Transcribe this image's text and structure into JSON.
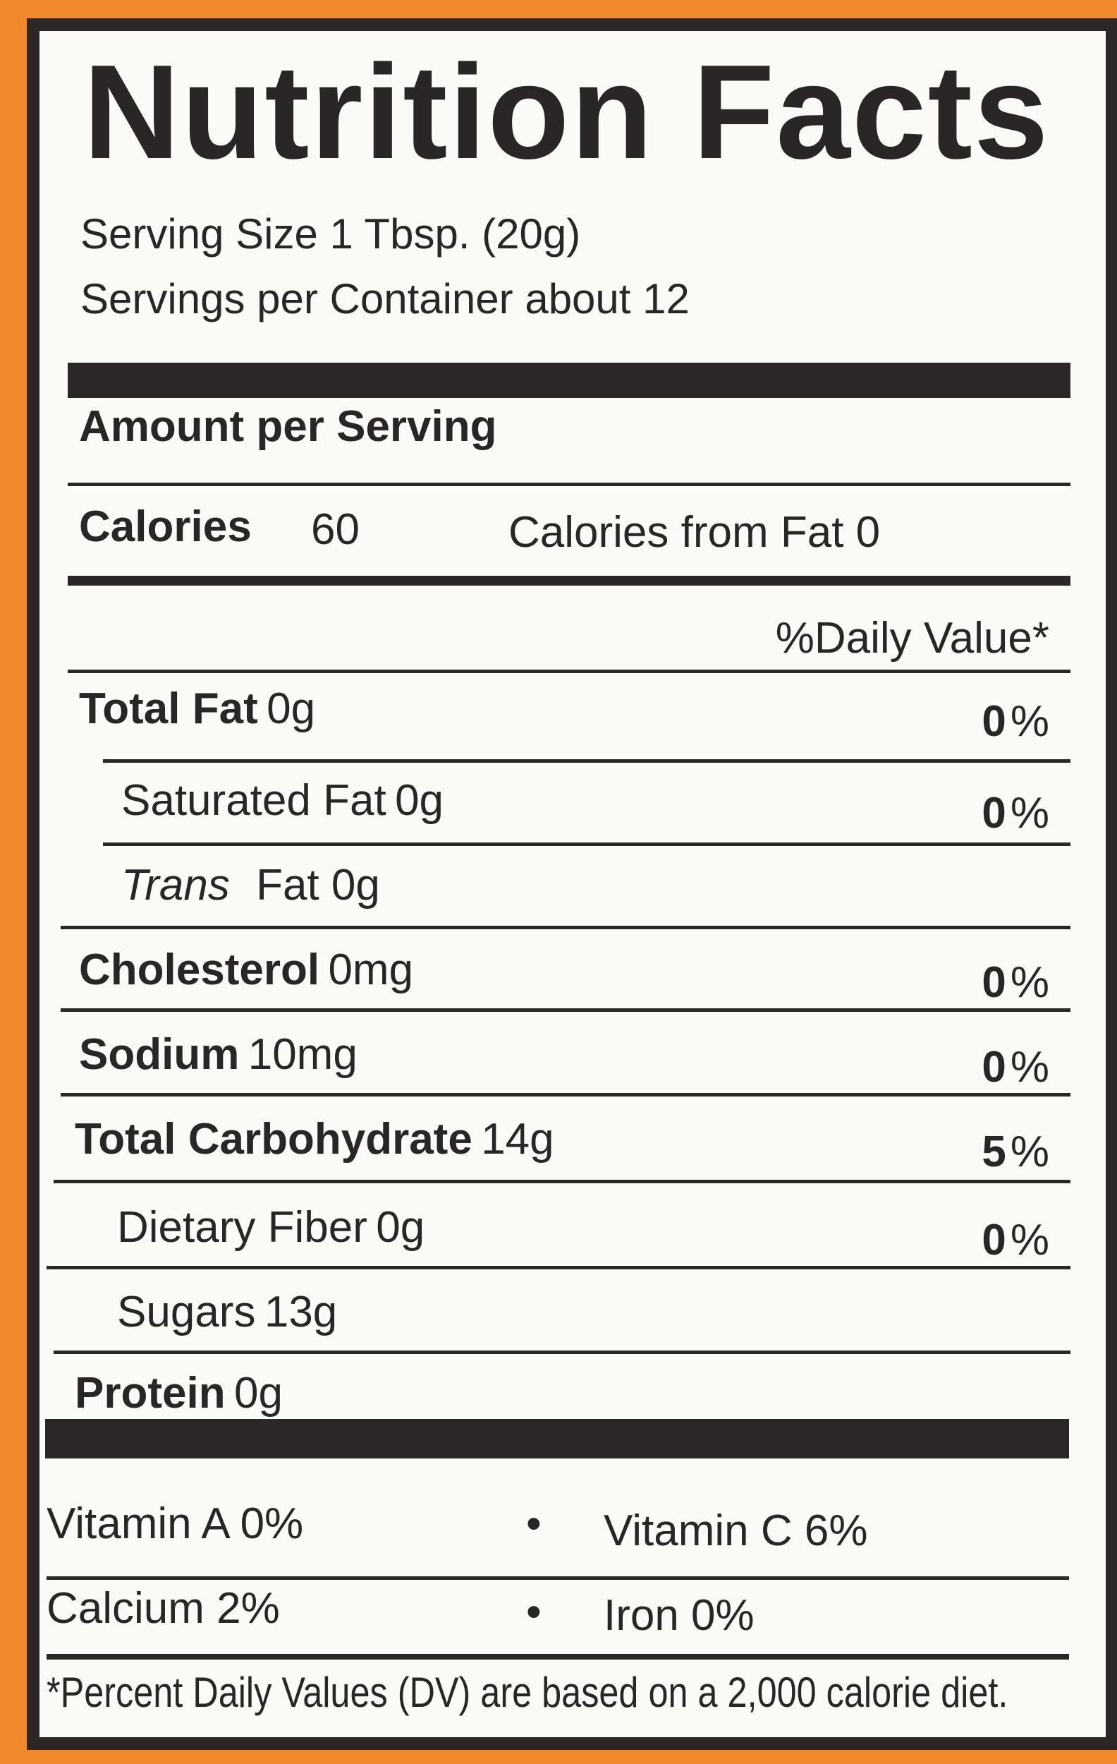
{
  "title": "Nutrition Facts",
  "serving_size": "Serving Size 1 Tbsp.  (20g)",
  "servings_per_container": "Servings per Container about 12",
  "amount_per_serving": "Amount per Serving",
  "calories": {
    "label": "Calories",
    "value": "60",
    "from_fat": "Calories from Fat 0"
  },
  "daily_value_header": "%Daily Value*",
  "nutrients": [
    {
      "label": "Total Fat",
      "amount": "0g",
      "dv": "0",
      "bold": true
    },
    {
      "label": "Saturated Fat",
      "amount": "0g",
      "dv": "0",
      "bold": false
    },
    {
      "label": "Trans",
      "amount": "Fat 0g",
      "dv": "",
      "bold": false
    },
    {
      "label": "Cholesterol",
      "amount": "0mg",
      "dv": "0",
      "bold": true
    },
    {
      "label": "Sodium",
      "amount": "10mg",
      "dv": "0",
      "bold": true
    },
    {
      "label": "Total Carbohydrate",
      "amount": "14g",
      "dv": "5",
      "bold": true
    },
    {
      "label": "Dietary Fiber",
      "amount": "0g",
      "dv": "0",
      "bold": false
    },
    {
      "label": "Sugars",
      "amount": "13g",
      "dv": "",
      "bold": false
    },
    {
      "label": "Protein",
      "amount": "0g",
      "dv": "",
      "bold": true
    }
  ],
  "percent_sign": "%",
  "vitamins": [
    {
      "left": "Vitamin A 0%",
      "right": "Vitamin C 6%"
    },
    {
      "left": "Calcium 2%",
      "right": "Iron 0%"
    }
  ],
  "bullet": "•",
  "footnote": "*Percent Daily Values (DV) are based on a 2,000 calorie diet.",
  "colors": {
    "background": "#f0892c",
    "label": "#fbfaf6",
    "ink": "#2b2727"
  }
}
